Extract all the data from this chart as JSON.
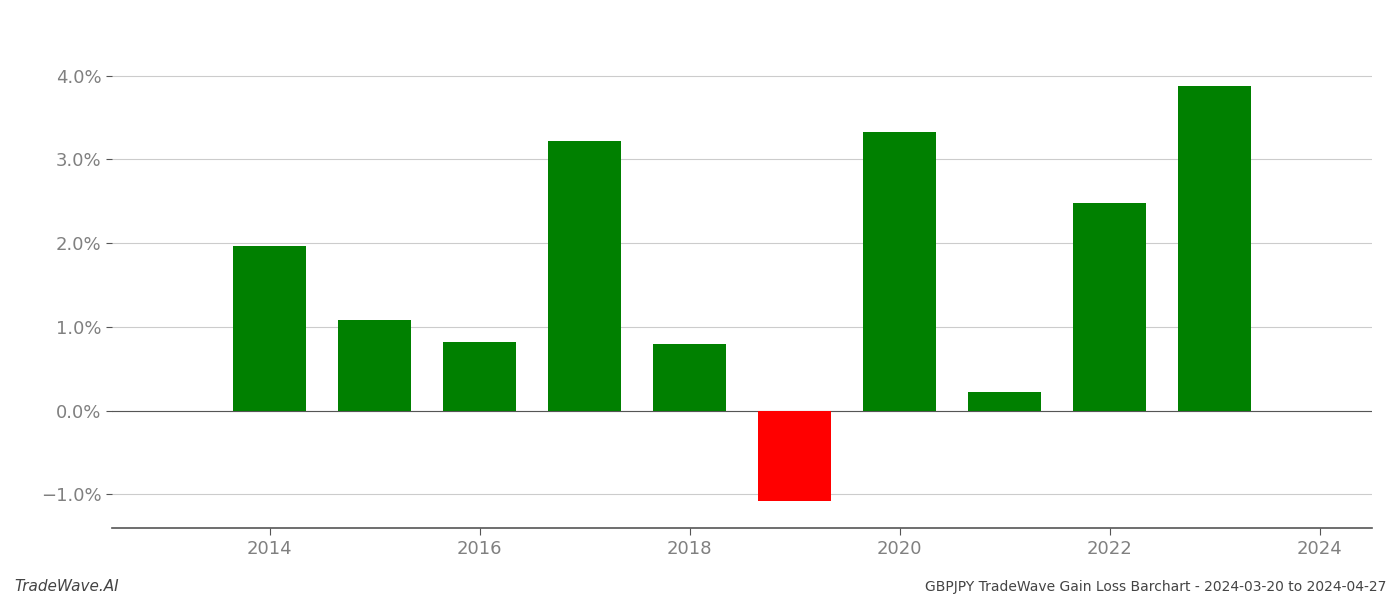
{
  "years": [
    2014,
    2015,
    2016,
    2017,
    2018,
    2019,
    2020,
    2021,
    2022,
    2023
  ],
  "values": [
    0.0197,
    0.0108,
    0.0082,
    0.0322,
    0.008,
    -0.0108,
    0.0332,
    0.0022,
    0.0248,
    0.0388
  ],
  "colors": [
    "#008000",
    "#008000",
    "#008000",
    "#008000",
    "#008000",
    "#ff0000",
    "#008000",
    "#008000",
    "#008000",
    "#008000"
  ],
  "ylim": [
    -0.014,
    0.044
  ],
  "yticks": [
    -0.01,
    0.0,
    0.01,
    0.02,
    0.03,
    0.04
  ],
  "ytick_labels": [
    "−1.0%",
    "0.0%",
    "1.0%",
    "2.0%",
    "3.0%",
    "4.0%"
  ],
  "xticks": [
    2014,
    2016,
    2018,
    2020,
    2022,
    2024
  ],
  "xtick_labels": [
    "2014",
    "2016",
    "2018",
    "2020",
    "2022",
    "2024"
  ],
  "xlim": [
    2012.5,
    2024.5
  ],
  "bar_width": 0.7,
  "background_color": "#ffffff",
  "grid_color": "#cccccc",
  "text_color": "#808080",
  "spine_color": "#555555",
  "footer_left": "TradeWave.AI",
  "footer_right": "GBPJPY TradeWave Gain Loss Barchart - 2024-03-20 to 2024-04-27",
  "fig_width": 14.0,
  "fig_height": 6.0,
  "dpi": 100
}
